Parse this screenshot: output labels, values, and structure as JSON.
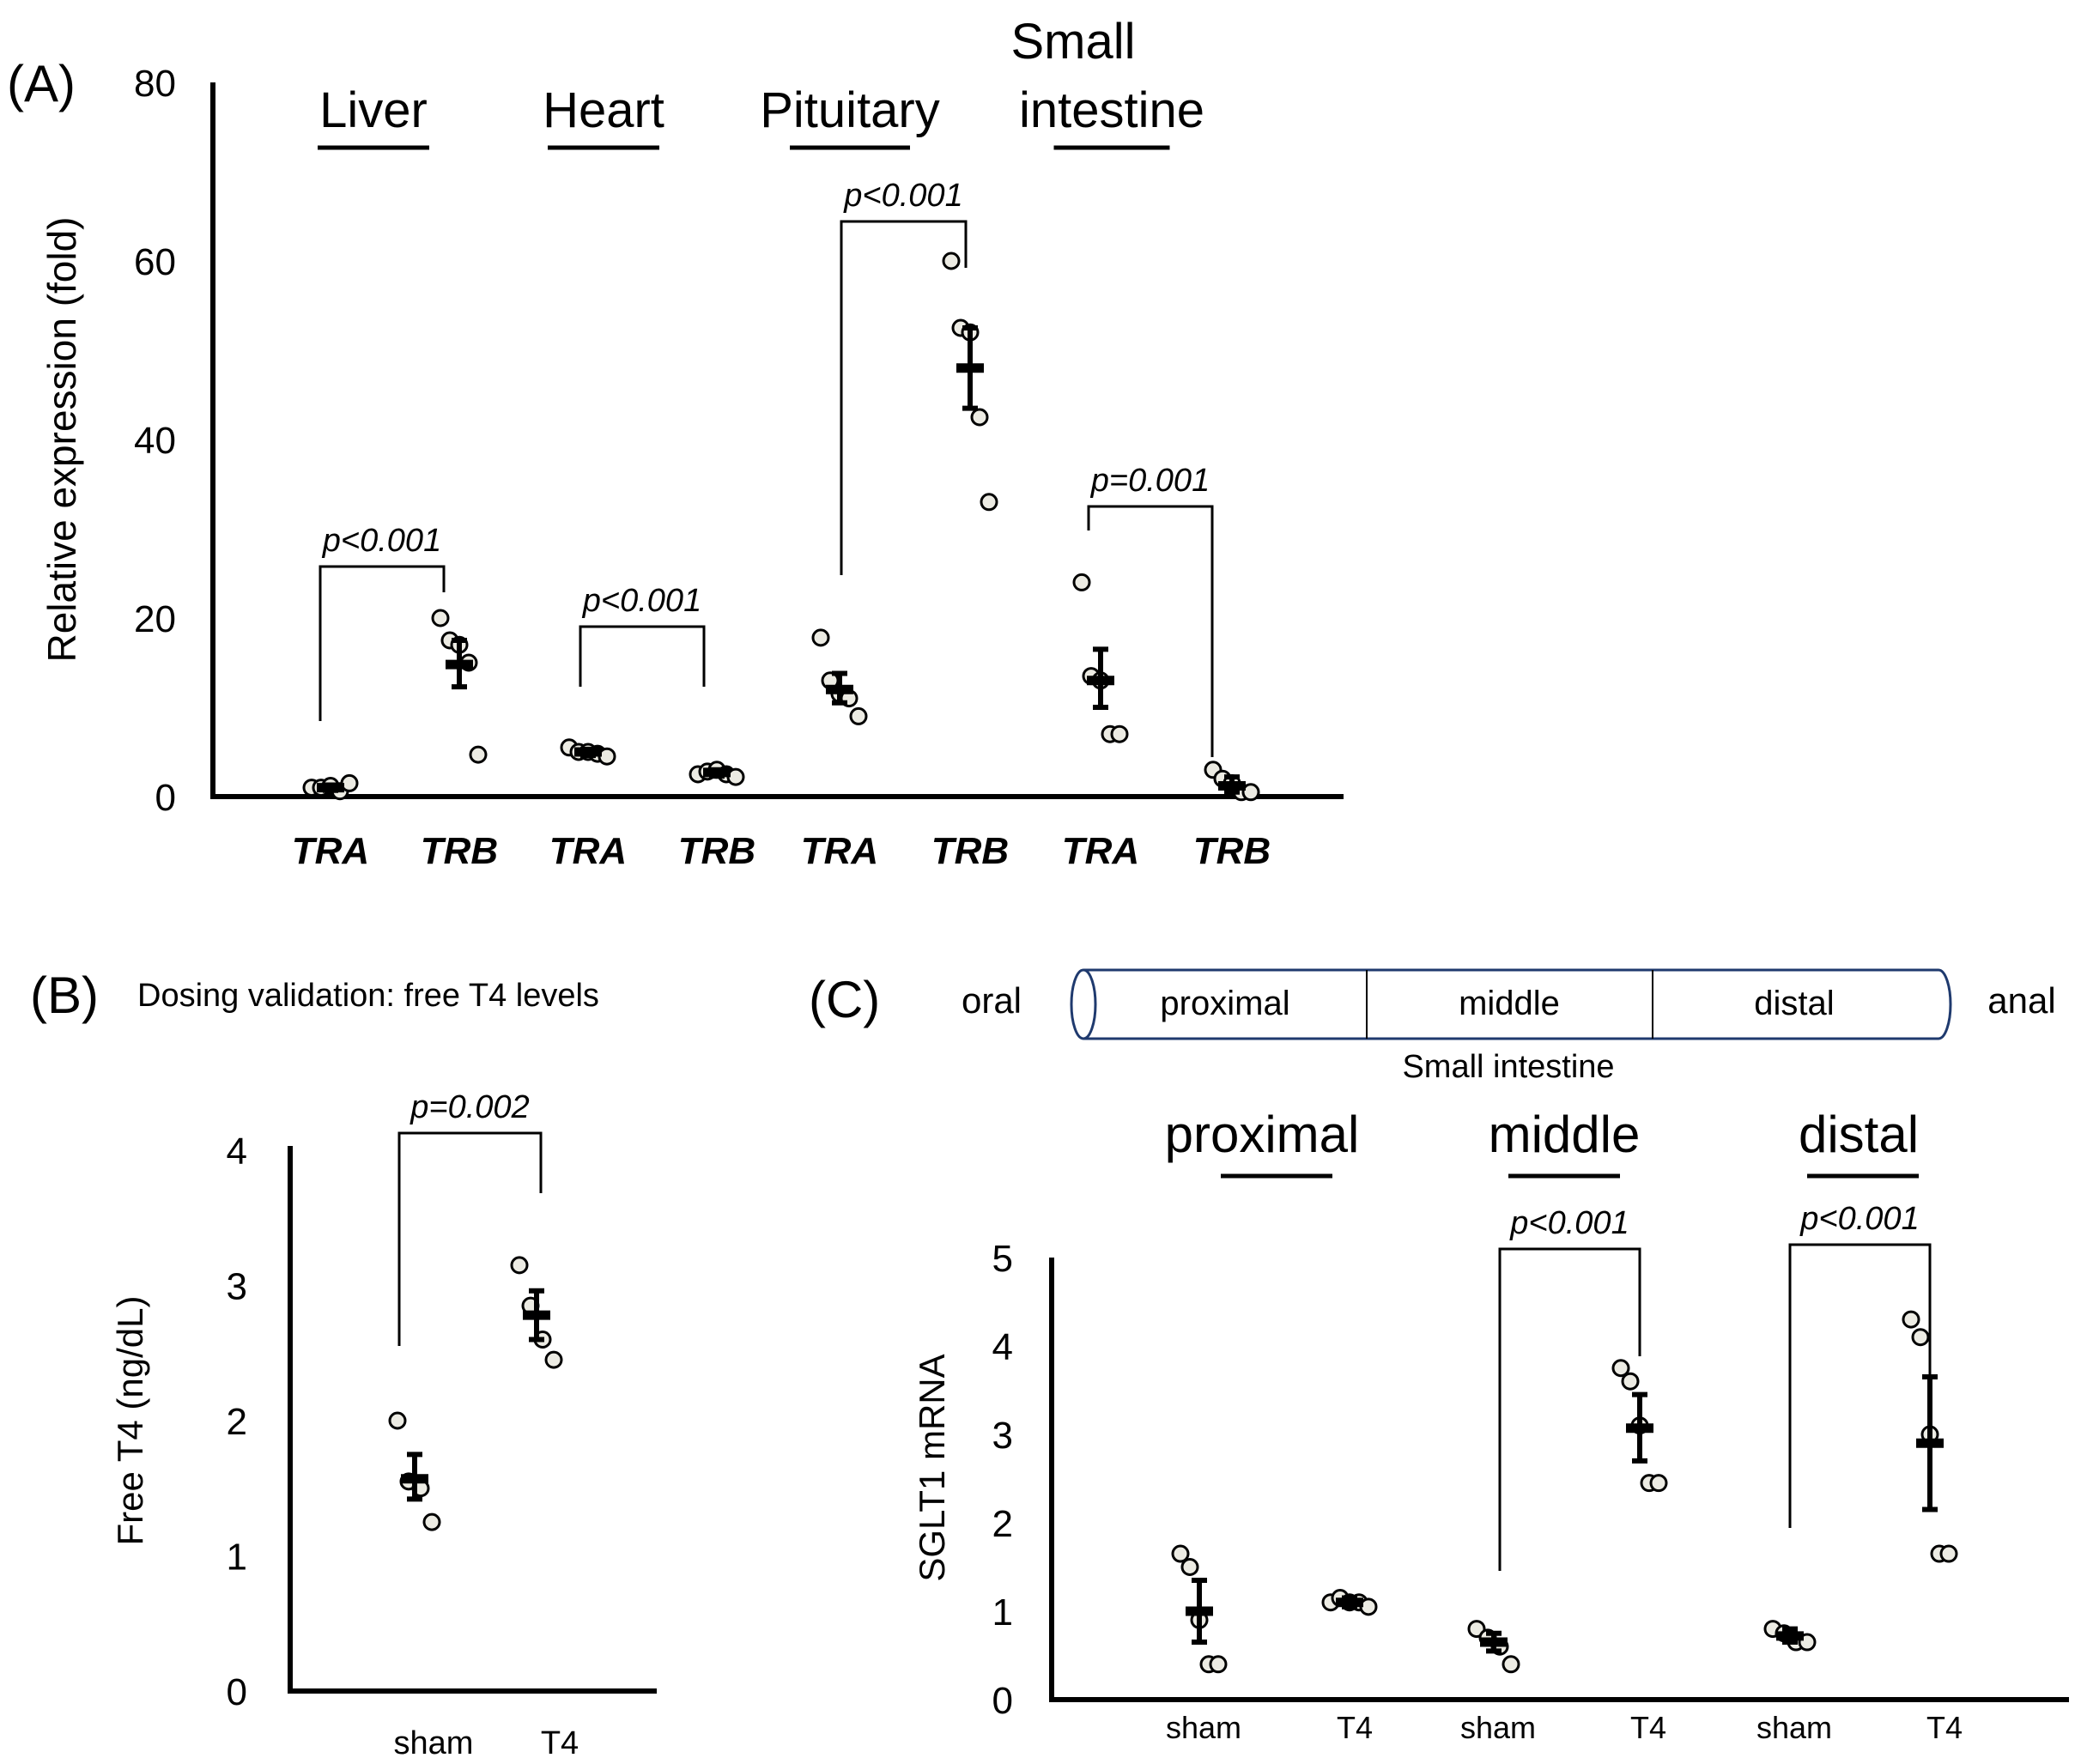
{
  "chart_data": [
    {
      "id": "A",
      "type": "scatter",
      "panel_label": "(A)",
      "ylabel": "Relative expression (fold)",
      "ylim": [
        0,
        80
      ],
      "yticks": [
        "0",
        "20",
        "40",
        "60",
        "80"
      ],
      "tissues": [
        "Liver",
        "Heart",
        "Pituitary",
        "Small intestine"
      ],
      "tissue_lines": [
        [
          "Liver"
        ],
        [
          "Heart"
        ],
        [
          "Pituitary"
        ],
        [
          "Small",
          "intestine"
        ]
      ],
      "categories": [
        "TRA",
        "TRB",
        "TRA",
        "TRB",
        "TRA",
        "TRB",
        "TRA",
        "TRB"
      ],
      "groups": [
        {
          "tissue": "Liver",
          "gene": "TRA",
          "points": [
            1.0,
            1.0,
            1.2,
            0.6,
            1.5
          ],
          "mean": 1.0,
          "sem_range": [
            0.7,
            1.3
          ]
        },
        {
          "tissue": "Liver",
          "gene": "TRB",
          "points": [
            20.0,
            17.5,
            17.0,
            15.0,
            4.7
          ],
          "mean": 14.8,
          "sem_range": [
            12.3,
            17.5
          ]
        },
        {
          "tissue": "Heart",
          "gene": "TRA",
          "points": [
            5.5,
            5.0,
            5.0,
            4.8,
            4.5
          ],
          "mean": 5.0,
          "sem_range": [
            4.6,
            5.3
          ]
        },
        {
          "tissue": "Heart",
          "gene": "TRB",
          "points": [
            2.5,
            2.8,
            3.0,
            2.5,
            2.2
          ],
          "mean": 2.7,
          "sem_range": [
            2.3,
            3.0
          ]
        },
        {
          "tissue": "Pituitary",
          "gene": "TRA",
          "points": [
            17.8,
            13.0,
            11.5,
            11.0,
            9.0
          ],
          "mean": 12.0,
          "sem_range": [
            10.5,
            13.8
          ]
        },
        {
          "tissue": "Pituitary",
          "gene": "TRB",
          "points": [
            60.0,
            52.5,
            52.0,
            42.5,
            33.0
          ],
          "mean": 48.0,
          "sem_range": [
            43.5,
            52.5
          ]
        },
        {
          "tissue": "Small intestine",
          "gene": "TRA",
          "points": [
            24.0,
            13.5,
            13.0,
            7.0,
            7.0
          ],
          "mean": 13.0,
          "sem_range": [
            10.0,
            16.5
          ]
        },
        {
          "tissue": "Small intestine",
          "gene": "TRB",
          "points": [
            3.0,
            2.0,
            1.5,
            0.5,
            0.5
          ],
          "mean": 1.2,
          "sem_range": [
            0.5,
            2.2
          ]
        }
      ],
      "comparisons": [
        {
          "tissue": "Liver",
          "label": "p<0.001"
        },
        {
          "tissue": "Heart",
          "label": "p<0.001"
        },
        {
          "tissue": "Pituitary",
          "label": "p<0.001"
        },
        {
          "tissue": "Small intestine",
          "label": "p=0.001"
        }
      ]
    },
    {
      "id": "B",
      "type": "scatter",
      "panel_label": "(B)",
      "title": "Dosing validation: free T4 levels",
      "ylabel": "Free T4 (ng/dL)",
      "ylim": [
        0,
        4
      ],
      "yticks": [
        "0",
        "1",
        "2",
        "3",
        "4"
      ],
      "categories": [
        "sham",
        "T4"
      ],
      "groups": [
        {
          "group": "sham",
          "points": [
            2.0,
            1.55,
            1.5,
            1.25
          ],
          "mean": 1.57,
          "sem_range": [
            1.42,
            1.75
          ]
        },
        {
          "group": "T4",
          "points": [
            3.15,
            2.85,
            2.6,
            2.45
          ],
          "mean": 2.78,
          "sem_range": [
            2.6,
            2.96
          ]
        }
      ],
      "comparisons": [
        {
          "label": "p=0.002"
        }
      ]
    },
    {
      "id": "C",
      "type": "scatter",
      "panel_label": "(C)",
      "ylabel": "SGLT1 mRNA",
      "ylim": [
        0,
        5
      ],
      "yticks": [
        "0",
        "1",
        "2",
        "3",
        "4",
        "5"
      ],
      "segments": [
        "proximal",
        "middle",
        "distal"
      ],
      "categories": [
        "sham",
        "T4",
        "sham",
        "T4",
        "sham",
        "T4"
      ],
      "groups": [
        {
          "segment": "proximal",
          "group": "sham",
          "points": [
            1.65,
            1.5,
            0.9,
            0.4,
            0.4
          ],
          "mean": 1.0,
          "sem_range": [
            0.65,
            1.35
          ]
        },
        {
          "segment": "proximal",
          "group": "T4",
          "points": [
            1.1,
            1.15,
            1.1,
            1.1,
            1.05
          ],
          "mean": 1.1,
          "sem_range": [
            1.05,
            1.15
          ]
        },
        {
          "segment": "middle",
          "group": "sham",
          "points": [
            0.8,
            0.7,
            0.6,
            0.4
          ],
          "mean": 0.65,
          "sem_range": [
            0.55,
            0.75
          ]
        },
        {
          "segment": "middle",
          "group": "T4",
          "points": [
            3.75,
            3.6,
            3.1,
            2.45,
            2.45
          ],
          "mean": 3.07,
          "sem_range": [
            2.7,
            3.45
          ]
        },
        {
          "segment": "distal",
          "group": "sham",
          "points": [
            0.8,
            0.75,
            0.65,
            0.65
          ],
          "mean": 0.72,
          "sem_range": [
            0.65,
            0.8
          ]
        },
        {
          "segment": "distal",
          "group": "T4",
          "points": [
            4.3,
            4.1,
            3.0,
            1.65,
            1.65
          ],
          "mean": 2.9,
          "sem_range": [
            2.15,
            3.65
          ]
        }
      ],
      "comparisons": [
        {
          "segment": "middle",
          "label": "p<0.001"
        },
        {
          "segment": "distal",
          "label": "p<0.001"
        }
      ],
      "diagram": {
        "left_end": "oral",
        "right_end": "anal",
        "segments": [
          "proximal",
          "middle",
          "distal"
        ],
        "caption": "Small intestine"
      }
    }
  ]
}
